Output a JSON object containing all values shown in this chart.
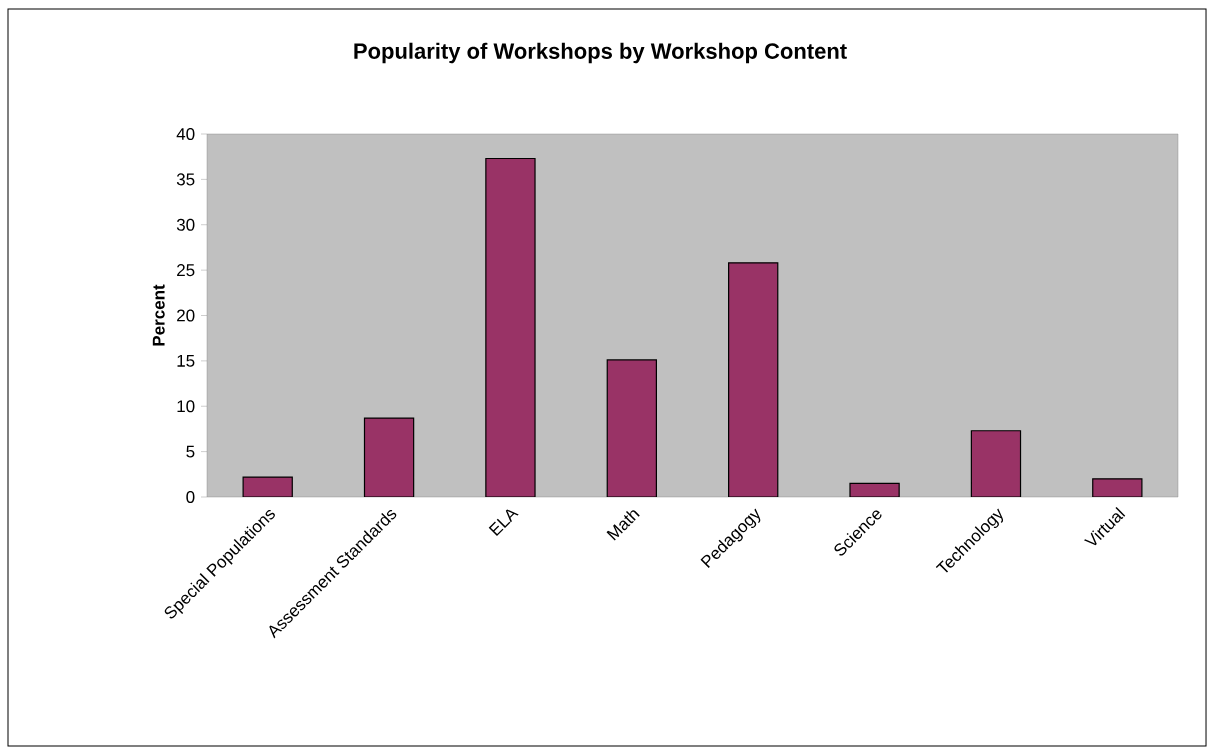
{
  "chart_data": {
    "type": "bar",
    "title": "Popularity of Workshops by Workshop Content",
    "ylabel": "Percent",
    "categories": [
      "Special Populations",
      "Assessment Standards",
      "ELA",
      "Math",
      "Pedagogy",
      "Science",
      "Technology",
      "Virtual"
    ],
    "values": [
      2.2,
      8.7,
      37.3,
      15.1,
      25.8,
      1.5,
      7.3,
      2.0
    ],
    "color": "#993366",
    "ylim": [
      0,
      40
    ],
    "yticks": [
      0,
      5,
      10,
      15,
      20,
      25,
      30,
      35,
      40
    ],
    "grid": false
  }
}
